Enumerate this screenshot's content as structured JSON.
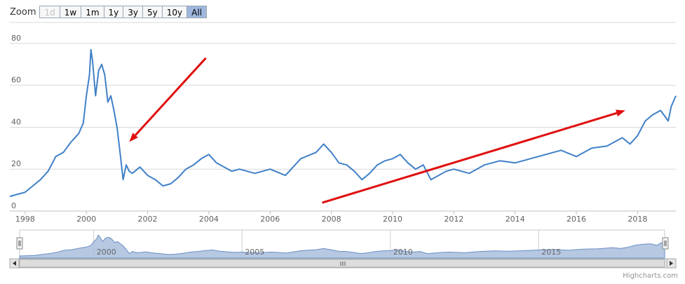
{
  "zoom": {
    "label": "Zoom",
    "buttons": [
      {
        "label": "1d",
        "state": "disabled"
      },
      {
        "label": "1w",
        "state": "normal"
      },
      {
        "label": "1m",
        "state": "normal"
      },
      {
        "label": "1y",
        "state": "normal"
      },
      {
        "label": "3y",
        "state": "normal"
      },
      {
        "label": "5y",
        "state": "normal"
      },
      {
        "label": "10y",
        "state": "normal"
      },
      {
        "label": "All",
        "state": "selected"
      }
    ]
  },
  "credits": "Highcharts.com",
  "colors": {
    "series": "#4080c8",
    "navigator_fill": "#a9bedd",
    "arrow": "#e01010",
    "grid": "#d8d8d8"
  },
  "chart_data": {
    "type": "line",
    "title": "",
    "xlabel": "",
    "ylabel": "",
    "xlim": [
      1997.5,
      2019.25
    ],
    "ylim": [
      0,
      90
    ],
    "y_ticks": [
      0,
      20,
      40,
      60,
      80
    ],
    "x_ticks": [
      "1998",
      "2000",
      "2002",
      "2004",
      "2006",
      "2008",
      "2010",
      "2012",
      "2014",
      "2016",
      "2018"
    ],
    "navigator_ticks": [
      "2000",
      "2005",
      "2010",
      "2015"
    ],
    "grid": true,
    "legend": "none",
    "series": [
      {
        "x": [
          1997.5,
          1997.75,
          1998.0,
          1998.25,
          1998.5,
          1998.75,
          1999.0,
          1999.25,
          1999.5,
          1999.75,
          1999.9,
          2000.0,
          2000.1,
          2000.15,
          2000.2,
          2000.3,
          2000.4,
          2000.5,
          2000.6,
          2000.7,
          2000.8,
          2000.9,
          2001.0,
          2001.1,
          2001.2,
          2001.3,
          2001.4,
          2001.5,
          2001.75,
          2002.0,
          2002.25,
          2002.5,
          2002.75,
          2003.0,
          2003.25,
          2003.5,
          2003.75,
          2004.0,
          2004.25,
          2004.5,
          2004.75,
          2005.0,
          2005.5,
          2006.0,
          2006.5,
          2007.0,
          2007.5,
          2007.75,
          2008.0,
          2008.25,
          2008.5,
          2008.75,
          2009.0,
          2009.25,
          2009.5,
          2009.75,
          2010.0,
          2010.25,
          2010.5,
          2010.75,
          2011.0,
          2011.25,
          2011.5,
          2011.75,
          2012.0,
          2012.5,
          2013.0,
          2013.5,
          2014.0,
          2014.5,
          2015.0,
          2015.5,
          2016.0,
          2016.5,
          2017.0,
          2017.5,
          2017.75,
          2018.0,
          2018.25,
          2018.5,
          2018.75,
          2019.0,
          2019.1,
          2019.25
        ],
        "values": [
          7,
          8,
          9,
          12,
          15,
          19,
          26,
          28,
          33,
          37,
          42,
          55,
          65,
          77,
          72,
          55,
          67,
          70,
          65,
          52,
          55,
          48,
          40,
          28,
          15,
          22,
          19,
          18,
          21,
          17,
          15,
          12,
          13,
          16,
          20,
          22,
          25,
          27,
          23,
          21,
          19,
          20,
          18,
          20,
          17,
          25,
          28,
          32,
          28,
          23,
          22,
          19,
          15,
          18,
          22,
          24,
          25,
          27,
          23,
          20,
          22,
          15,
          17,
          19,
          20,
          18,
          22,
          24,
          23,
          25,
          27,
          29,
          26,
          30,
          31,
          35,
          32,
          36,
          43,
          46,
          48,
          43,
          50,
          55
        ]
      }
    ],
    "annotations": [
      {
        "type": "arrow",
        "from": [
          2003.9,
          73
        ],
        "to": [
          2001.4,
          33
        ]
      },
      {
        "type": "arrow",
        "from": [
          2007.7,
          4
        ],
        "to": [
          2017.6,
          48
        ]
      }
    ]
  }
}
